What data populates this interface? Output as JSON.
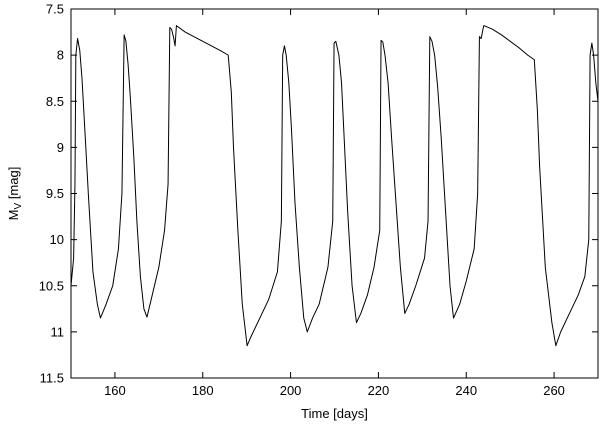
{
  "chart_data": {
    "type": "line",
    "xlabel": "Time [days]",
    "ylabel_main": "M",
    "ylabel_sub": "V",
    "ylabel_suffix": " [mag]",
    "xlim": [
      150,
      270
    ],
    "ylim": [
      7.5,
      11.5
    ],
    "y_inverted": true,
    "grid": false,
    "x_ticks": [
      {
        "value": 160,
        "label": "160"
      },
      {
        "value": 180,
        "label": "180"
      },
      {
        "value": 200,
        "label": "200"
      },
      {
        "value": 220,
        "label": "220"
      },
      {
        "value": 240,
        "label": "240"
      },
      {
        "value": 260,
        "label": "260"
      }
    ],
    "y_ticks": [
      {
        "value": 7.5,
        "label": "7.5"
      },
      {
        "value": 8,
        "label": "8"
      },
      {
        "value": 8.5,
        "label": "8.5"
      },
      {
        "value": 9,
        "label": "9"
      },
      {
        "value": 9.5,
        "label": "9.5"
      },
      {
        "value": 10,
        "label": "10"
      },
      {
        "value": 10.5,
        "label": "10.5"
      },
      {
        "value": 11,
        "label": "11"
      },
      {
        "value": 11.5,
        "label": "11.5"
      }
    ],
    "series": [
      {
        "color": "#000000",
        "x": [
          150.0,
          150.6,
          150.9,
          151.1,
          151.5,
          152.0,
          152.5,
          153.2,
          154.0,
          155.0,
          156.0,
          156.7,
          158.0,
          159.5,
          160.8,
          161.6,
          162.1,
          162.5,
          163.0,
          163.5,
          164.3,
          165.0,
          165.8,
          166.6,
          167.3,
          168.5,
          170.0,
          171.3,
          172.1,
          172.5,
          172.9,
          173.4,
          173.7,
          174.0,
          176.0,
          178.0,
          180.0,
          182.0,
          184.0,
          185.8,
          186.5,
          187.0,
          188.0,
          189.0,
          190.1,
          191.0,
          193.0,
          195.0,
          197.0,
          197.9,
          198.2,
          198.6,
          199.0,
          199.6,
          200.2,
          201.0,
          202.0,
          203.0,
          203.8,
          205.0,
          206.5,
          208.5,
          209.6,
          209.9,
          210.3,
          211.0,
          211.6,
          212.2,
          213.0,
          214.0,
          215.0,
          216.0,
          217.5,
          219.0,
          220.3,
          220.6,
          221.0,
          221.5,
          222.2,
          223.0,
          224.0,
          225.0,
          226.0,
          227.0,
          228.5,
          230.5,
          231.3,
          231.7,
          232.2,
          232.8,
          233.5,
          234.3,
          235.3,
          236.3,
          237.1,
          238.5,
          240.0,
          241.8,
          242.6,
          243.0,
          243.4,
          243.8,
          244.0,
          246.0,
          248.0,
          250.0,
          252.0,
          254.0,
          255.5,
          256.2,
          256.7,
          258.0,
          259.5,
          260.4,
          261.5,
          263.5,
          265.5,
          267.0,
          267.9,
          268.2,
          268.6,
          269.0,
          269.5,
          270.0
        ],
        "y": [
          10.5,
          10.2,
          9.4,
          8.0,
          7.82,
          7.95,
          8.25,
          8.85,
          9.55,
          10.35,
          10.7,
          10.85,
          10.7,
          10.5,
          10.1,
          9.5,
          7.78,
          7.85,
          8.1,
          8.45,
          9.1,
          9.8,
          10.4,
          10.75,
          10.84,
          10.6,
          10.3,
          9.9,
          9.4,
          7.7,
          7.72,
          7.82,
          7.9,
          7.68,
          7.75,
          7.8,
          7.85,
          7.9,
          7.95,
          8.0,
          8.4,
          9.0,
          9.9,
          10.7,
          11.15,
          11.05,
          10.85,
          10.65,
          10.35,
          9.8,
          8.0,
          7.9,
          8.0,
          8.3,
          8.8,
          9.6,
          10.3,
          10.85,
          11.0,
          10.85,
          10.7,
          10.3,
          9.8,
          7.87,
          7.85,
          8.0,
          8.3,
          8.9,
          9.7,
          10.5,
          10.9,
          10.8,
          10.6,
          10.3,
          9.9,
          7.84,
          7.86,
          8.0,
          8.3,
          8.9,
          9.6,
          10.3,
          10.8,
          10.7,
          10.5,
          10.2,
          9.8,
          7.8,
          7.85,
          8.0,
          8.35,
          8.9,
          9.7,
          10.5,
          10.85,
          10.7,
          10.45,
          10.1,
          9.5,
          7.8,
          7.82,
          7.72,
          7.68,
          7.72,
          7.78,
          7.85,
          7.92,
          8.0,
          8.05,
          8.6,
          9.2,
          10.3,
          10.9,
          11.15,
          11.0,
          10.8,
          10.6,
          10.4,
          10.0,
          8.0,
          7.87,
          8.0,
          8.3,
          8.5
        ]
      }
    ]
  }
}
